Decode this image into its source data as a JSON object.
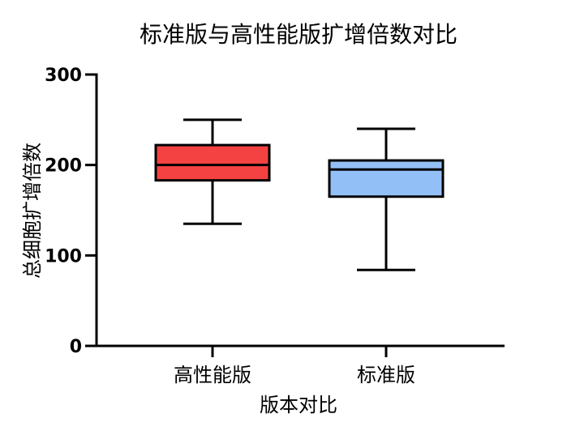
{
  "chart_data": {
    "type": "box",
    "title": "标准版与高性能版扩增倍数对比",
    "xlabel": "版本对比",
    "ylabel": "总细胞扩增倍数",
    "ylim": [
      0,
      300
    ],
    "yticks": [
      0,
      100,
      200,
      300
    ],
    "categories": [
      "高性能版",
      "标准版"
    ],
    "boxes": [
      {
        "category": "高性能版",
        "min": 135,
        "q1": 183,
        "median": 200,
        "q3": 222,
        "max": 250,
        "color": "#f44242"
      },
      {
        "category": "标准版",
        "min": 84,
        "q1": 165,
        "median": 195,
        "q3": 205,
        "max": 240,
        "color": "#92bff5"
      }
    ],
    "grid": false
  }
}
